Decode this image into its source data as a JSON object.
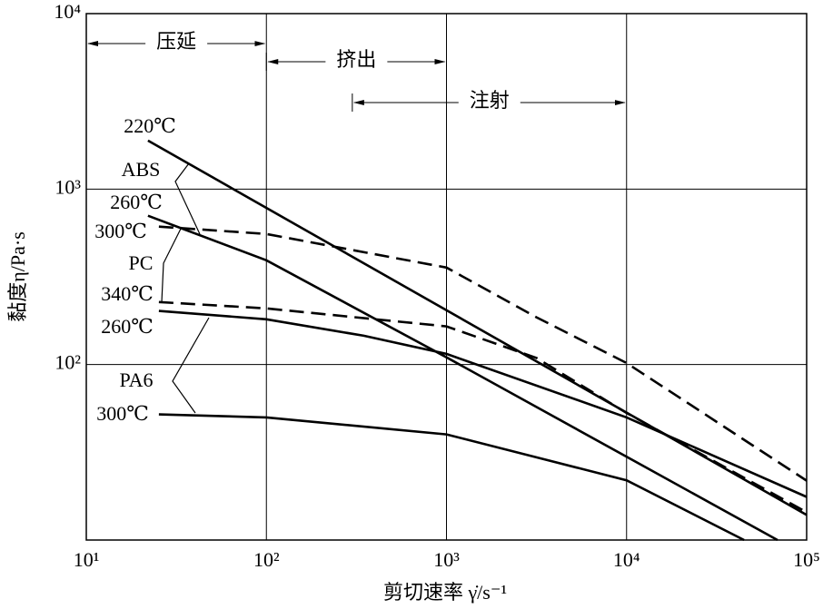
{
  "chart_data": {
    "type": "line",
    "log_x": true,
    "log_y": true,
    "grid": true,
    "color": "#000000",
    "ylabel": "黏度η/Pa·s",
    "xlabel": "剪切速率 γ̇/s⁻¹",
    "xlim": [
      10,
      100000
    ],
    "ylim": [
      10,
      10000
    ],
    "xticks": [
      {
        "value": 10,
        "label": "10¹"
      },
      {
        "value": 100,
        "label": "10²"
      },
      {
        "value": 1000,
        "label": "10³"
      },
      {
        "value": 10000,
        "label": "10⁴"
      },
      {
        "value": 100000,
        "label": "10⁵"
      }
    ],
    "yticks": [
      {
        "value": 100,
        "label": "10²"
      },
      {
        "value": 1000,
        "label": "10³"
      },
      {
        "value": 10000,
        "label": "10⁴"
      }
    ],
    "ranges": [
      {
        "label": "压延",
        "x": [
          10,
          100
        ]
      },
      {
        "label": "挤出",
        "x": [
          100,
          1000
        ]
      },
      {
        "label": "注射",
        "x": [
          300,
          10000
        ]
      }
    ],
    "annotations": [
      "220℃",
      "ABS",
      "260℃",
      "300℃",
      "PC",
      "340℃",
      "260℃",
      "PA6",
      "300℃"
    ],
    "series": [
      {
        "style": "solid",
        "x": [
          22,
          100000
        ],
        "values": [
          1890,
          13.9
        ]
      },
      {
        "style": "solid",
        "x": [
          22,
          100,
          1000,
          68900
        ],
        "values": [
          705,
          393,
          110,
          10
        ]
      },
      {
        "style": "dashed",
        "x": [
          25.3,
          100,
          1000,
          3160,
          10000,
          100000
        ],
        "values": [
          611,
          555,
          357,
          186,
          102,
          21.8
        ]
      },
      {
        "style": "dashed",
        "x": [
          25.3,
          100,
          1000,
          3160,
          10000,
          100000
        ],
        "values": [
          227,
          209,
          165,
          109,
          53,
          14.4
        ]
      },
      {
        "style": "solid",
        "x": [
          25.3,
          100,
          347,
          1000,
          10000,
          100000
        ],
        "values": [
          202,
          181,
          146,
          115,
          50,
          17.6
        ]
      },
      {
        "style": "solid",
        "x": [
          25.3,
          100,
          1000,
          10000,
          44900
        ],
        "values": [
          52,
          50,
          40,
          21.9,
          10
        ]
      }
    ]
  }
}
